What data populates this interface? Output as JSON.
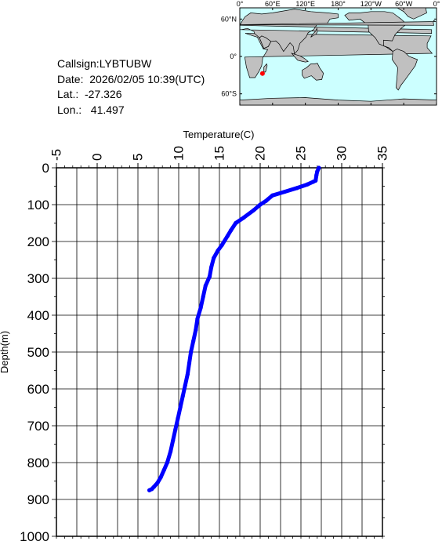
{
  "meta": {
    "callsign": "Callsign:LYBTUBW",
    "date": "Date:  2026/02/05 10:39(UTC)",
    "lat": "Lat.:  -27.326",
    "lon": "Lon.:   41.497"
  },
  "map": {
    "top_labels": [
      "0°",
      "60°E",
      "120°E",
      "180°",
      "120°W",
      "60°W",
      "0°"
    ],
    "side_labels": [
      "60°N",
      "0°",
      "60°S"
    ],
    "ocean_color": "#ccffff",
    "land_color": "#c0c0c0",
    "marker_color": "#ff0000",
    "marker": {
      "lon": 41.497,
      "lat": -27.326
    }
  },
  "chart_data": {
    "type": "line",
    "title": "",
    "xlabel": "Temperature(C)",
    "ylabel": "Depth(m)",
    "xlim": [
      -5,
      35
    ],
    "ylim": [
      0,
      1000
    ],
    "y_inverted": true,
    "x_axis_position": "top",
    "grid": true,
    "x_ticks": [
      "-5",
      "0",
      "5",
      "10",
      "15",
      "20",
      "25",
      "30",
      "35"
    ],
    "y_ticks": [
      "0",
      "100",
      "200",
      "300",
      "400",
      "500",
      "600",
      "700",
      "800",
      "900",
      "1000"
    ],
    "series": [
      {
        "color": "#0000ff",
        "x": [
          27.2,
          27.0,
          26.9,
          26.8,
          26.5,
          25.8,
          24.5,
          23.0,
          21.5,
          20.7,
          20.0,
          19.2,
          18.0,
          17.0,
          16.4,
          16.0,
          15.3,
          14.8,
          14.3,
          14.0,
          13.8,
          13.3,
          13.0,
          12.7,
          12.3,
          12.1,
          11.8,
          11.5,
          11.3,
          11.1,
          10.8,
          10.5,
          10.2,
          9.9,
          9.6,
          9.3,
          9.0,
          8.6,
          8.2,
          7.8,
          7.4,
          7.0,
          6.7,
          6.4
        ],
        "y": [
          0,
          10,
          20,
          35,
          38,
          45,
          55,
          65,
          75,
          90,
          100,
          115,
          135,
          150,
          170,
          185,
          210,
          225,
          245,
          270,
          295,
          320,
          350,
          380,
          410,
          440,
          470,
          500,
          530,
          560,
          590,
          620,
          650,
          680,
          710,
          740,
          770,
          800,
          820,
          840,
          855,
          865,
          872,
          875
        ]
      }
    ]
  }
}
